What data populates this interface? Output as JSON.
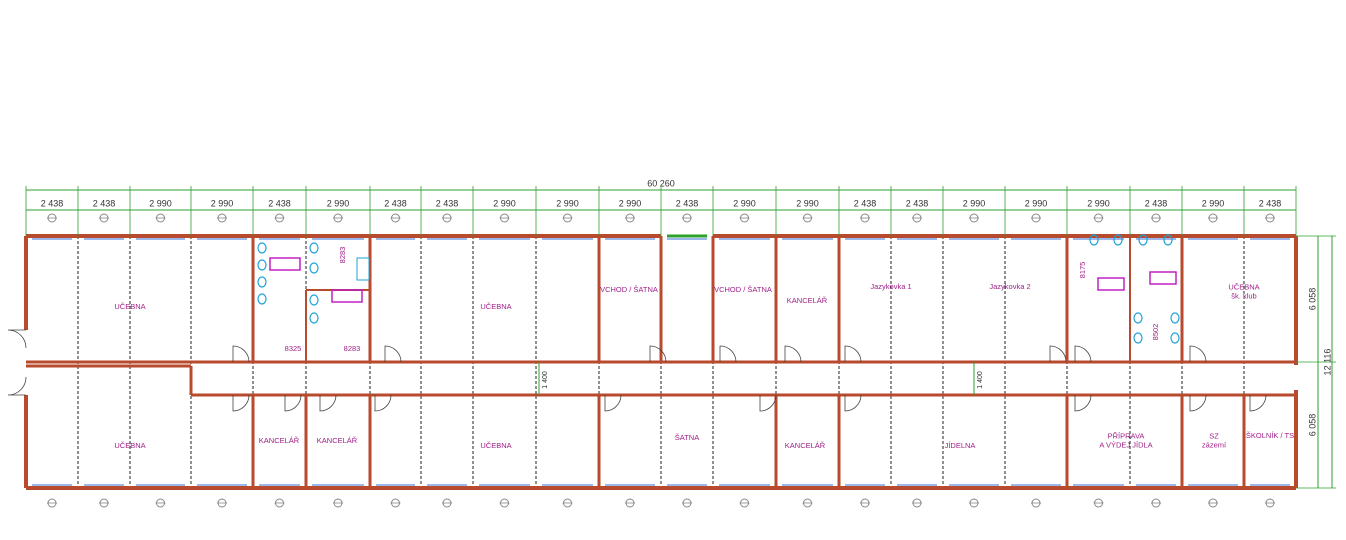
{
  "dimensions": {
    "total": "60 260",
    "modules": [
      "2 438",
      "2 438",
      "2 990",
      "2 990",
      "2 438",
      "2 990",
      "2 438",
      "2 438",
      "2 990",
      "2 990",
      "2 990",
      "2 438",
      "2 990",
      "2 990",
      "2 438",
      "2 438",
      "2 990",
      "2 990",
      "2 990",
      "2 438",
      "2 990",
      "2 438"
    ],
    "depth_top": "6 058",
    "depth_total": "12 116",
    "depth_bottom": "6 058",
    "corridor": [
      "1 400",
      "1 400"
    ]
  },
  "rooms": [
    {
      "lines": [
        "UČEBNA"
      ]
    },
    {
      "lines": [
        "UČEBNA"
      ]
    },
    {
      "lines": [
        "8325"
      ]
    },
    {
      "lines": [
        "8283"
      ]
    },
    {
      "lines": [
        "8283"
      ]
    },
    {
      "lines": [
        "UČEBNA"
      ]
    },
    {
      "lines": [
        "VCHOD / ŠATNA"
      ]
    },
    {
      "lines": [
        "VCHOD / ŠATNA"
      ]
    },
    {
      "lines": [
        "KANCELÁŘ"
      ]
    },
    {
      "lines": [
        "Jazykovka 1"
      ]
    },
    {
      "lines": [
        "Jazykovka 2"
      ]
    },
    {
      "lines": [
        "8175"
      ]
    },
    {
      "lines": [
        "8502"
      ]
    },
    {
      "lines": [
        "UČEBNA",
        "šk. klub"
      ]
    },
    {
      "lines": [
        "KANCELÁŘ"
      ]
    },
    {
      "lines": [
        "KANCELÁŘ"
      ]
    },
    {
      "lines": [
        "UČEBNA"
      ]
    },
    {
      "lines": [
        "ŠATNA"
      ]
    },
    {
      "lines": [
        "KANCELÁŘ"
      ]
    },
    {
      "lines": [
        "JÍDELNA"
      ]
    },
    {
      "lines": [
        "PŘÍPRAVA",
        "A VÝDEJ JÍDLA"
      ]
    },
    {
      "lines": [
        "SZ",
        "zázemí"
      ]
    },
    {
      "lines": [
        "ŠKOLNÍK / TS"
      ]
    }
  ]
}
